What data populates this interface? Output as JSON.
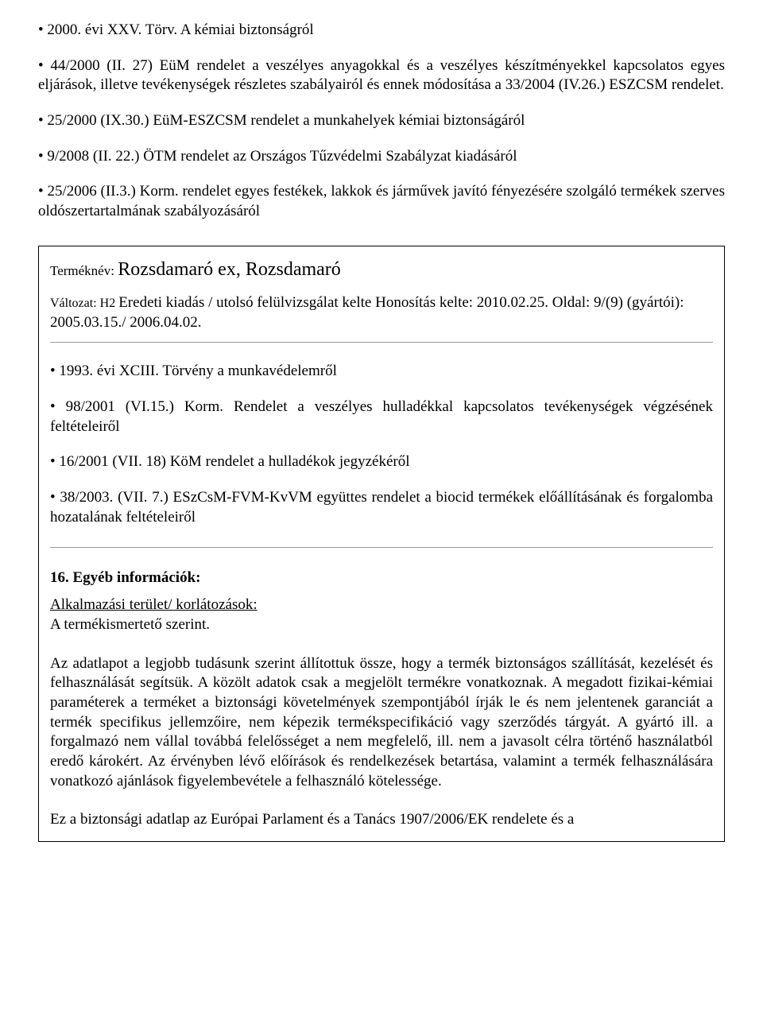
{
  "top": {
    "l1": "• 2000. évi XXV. Törv. A kémiai biztonságról",
    "l2": "• 44/2000 (II. 27) EüM rendelet a veszélyes anyagokkal és a veszélyes készítményekkel kapcsolatos egyes eljárások, illetve tevékenységek részletes szabályairól és ennek módosítása a 33/2004 (IV.26.) ESZCSM rendelet.",
    "l3": "• 25/2000 (IX.30.) EüM-ESZCSM rendelet a munkahelyek kémiai biztonságáról",
    "l4": "• 9/2008 (II. 22.) ÖTM rendelet az Országos Tűzvédelmi Szabályzat kiadásáról",
    "l5": "• 25/2006 (II.3.) Korm. rendelet egyes festékek, lakkok és járművek javító fényezésére szolgáló termékek szerves oldószertartalmának szabályozásáról"
  },
  "box": {
    "product_label": "Terméknév: ",
    "product_name": "Rozsdamaró ex, Rozsdamaró",
    "version_prefix": "Változat: H2 ",
    "version_rest": "Eredeti kiadás / utolsó felülvizsgálat kelte Honosítás kelte: 2010.02.25. Oldal: 9/(9) (gyártói): 2005.03.15./ 2006.04.02.",
    "b1": "• 1993. évi XCIII. Törvény a munkavédelemről",
    "b2": "• 98/2001 (VI.15.) Korm. Rendelet a veszélyes hulladékkal kapcsolatos tevékenységek végzésének feltételeiről",
    "b3": "• 16/2001 (VII. 18) KöM rendelet a hulladékok jegyzékéről",
    "b4": "• 38/2003. (VII. 7.) ESzCsM-FVM-KvVM együttes rendelet a biocid termékek előállításának és forgalomba hozatalának feltételeiről",
    "section_title": "16. Egyéb információk:",
    "app_label": "Alkalmazási terület/ korlátozások:",
    "app_line": "A termékismertető szerint.",
    "long_para": "Az adatlapot a legjobb tudásunk szerint állítottuk össze, hogy a termék biztonságos szállítását, kezelését és felhasználását segítsük. A közölt adatok csak a megjelölt termékre vonatkoznak. A megadott fizikai-kémiai paraméterek a terméket a biztonsági követelmények szempontjából írják le és nem jelentenek garanciát a termék specifikus jellemzőire, nem képezik termékspecifikáció vagy szerződés tárgyát. A gyártó ill. a forgalmazó nem vállal továbbá felelősséget a nem megfelelő, ill. nem a javasolt célra történő használatból eredő károkért. Az érvényben lévő előírások és rendelkezések betartása, valamint a termék felhasználására vonatkozó ajánlások figyelembevétele a felhasználó kötelessége.",
    "last_line": "Ez a biztonsági adatlap az Európai Parlament és a Tanács 1907/2006/EK rendelete és a"
  }
}
